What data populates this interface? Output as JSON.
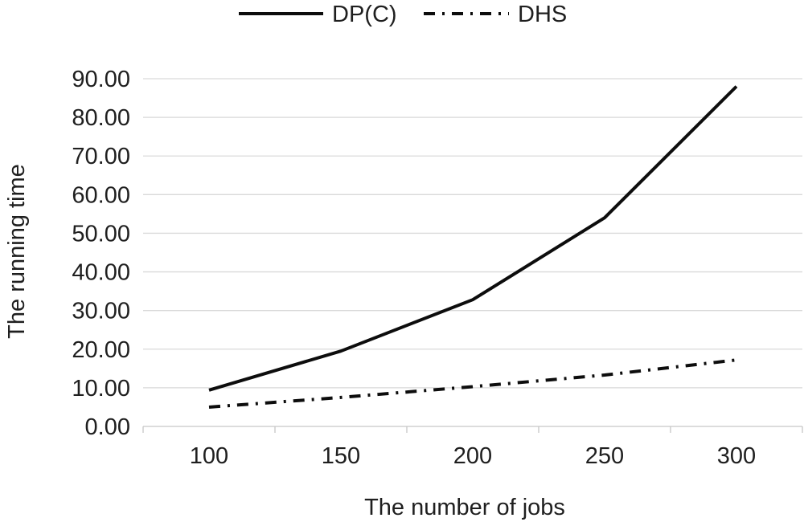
{
  "chart_data": {
    "type": "line",
    "title": "",
    "categories": [
      "100",
      "150",
      "200",
      "250",
      "300"
    ],
    "series": [
      {
        "name": "DP(C)",
        "style": "solid",
        "values": [
          9.4,
          19.5,
          32.8,
          54.0,
          88.0
        ]
      },
      {
        "name": "DHS",
        "style": "dash-dot",
        "values": [
          5.0,
          7.5,
          10.3,
          13.3,
          17.2
        ]
      }
    ],
    "xlabel": "The number of jobs",
    "ylabel": "The running time",
    "ylim": [
      0,
      90
    ],
    "y_tick_step": 10,
    "y_tick_labels": [
      "0.00",
      "10.00",
      "20.00",
      "30.00",
      "40.00",
      "50.00",
      "60.00",
      "70.00",
      "80.00",
      "90.00"
    ],
    "grid": true,
    "legend_position": "top-center",
    "colors": {
      "line": "#0d0d0d",
      "grid": "#d9d9d9",
      "axis": "#c6c6c6",
      "text": "#1f1f1f",
      "background": "#ffffff"
    }
  }
}
